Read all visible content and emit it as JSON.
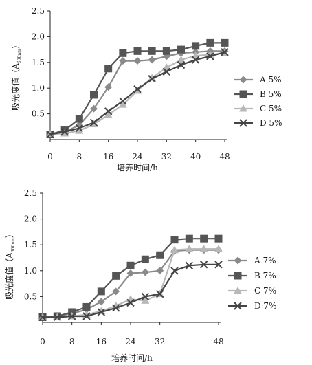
{
  "chart_data": [
    {
      "type": "line",
      "xlabel": "培养时间/h",
      "ylabel_main": "吸光度值（A",
      "ylabel_sub": "600nm",
      "ylabel_end": "）",
      "xlim": [
        0,
        48
      ],
      "ylim": [
        0,
        2.5
      ],
      "xticks": [
        "0",
        "8",
        "16",
        "24",
        "32",
        "40",
        "48"
      ],
      "yticks": [
        "0.5",
        "1.0",
        "1.5",
        "2.0",
        "2.5"
      ],
      "series": [
        {
          "name": "A  5%",
          "color": "#8a8a8a",
          "marker": "diamond",
          "x": [
            0,
            4,
            8,
            12,
            16,
            20,
            24,
            28,
            32,
            36,
            40,
            44,
            48
          ],
          "y": [
            0.1,
            0.15,
            0.28,
            0.6,
            1.02,
            1.53,
            1.53,
            1.55,
            1.62,
            1.68,
            1.7,
            1.72,
            1.72
          ]
        },
        {
          "name": "B  5%",
          "color": "#555555",
          "marker": "square",
          "x": [
            0,
            4,
            8,
            12,
            16,
            20,
            24,
            28,
            32,
            36,
            40,
            44,
            48
          ],
          "y": [
            0.1,
            0.18,
            0.4,
            0.87,
            1.38,
            1.68,
            1.72,
            1.72,
            1.72,
            1.75,
            1.82,
            1.88,
            1.88
          ]
        },
        {
          "name": "C  5%",
          "color": "#b8b8b8",
          "marker": "triangle",
          "x": [
            0,
            4,
            8,
            12,
            16,
            20,
            24,
            28,
            32,
            36,
            40,
            44,
            48
          ],
          "y": [
            0.1,
            0.12,
            0.17,
            0.3,
            0.48,
            0.68,
            0.95,
            1.2,
            1.4,
            1.55,
            1.63,
            1.65,
            1.68
          ]
        },
        {
          "name": "D  5%",
          "color": "#444444",
          "marker": "cross",
          "x": [
            0,
            4,
            8,
            12,
            16,
            20,
            24,
            28,
            32,
            36,
            40,
            44,
            48
          ],
          "y": [
            0.1,
            0.15,
            0.22,
            0.33,
            0.55,
            0.75,
            0.98,
            1.18,
            1.32,
            1.45,
            1.55,
            1.62,
            1.7
          ]
        }
      ]
    },
    {
      "type": "line",
      "xlabel": "培养时间/h",
      "ylabel_main": "吸光度值（A",
      "ylabel_sub": "600nm",
      "ylabel_end": "）",
      "xlim": [
        0,
        48
      ],
      "ylim": [
        0,
        2.5
      ],
      "xticks": [
        "0",
        "8",
        "16",
        "24",
        "32",
        "48"
      ],
      "xtick_values": [
        0,
        8,
        16,
        24,
        32,
        48
      ],
      "yticks": [
        "0.5",
        "1.0",
        "1.5",
        "2.0",
        "2.5"
      ],
      "series": [
        {
          "name": "A  7%",
          "color": "#8a8a8a",
          "marker": "diamond",
          "x": [
            0,
            4,
            8,
            12,
            16,
            20,
            24,
            28,
            32,
            36,
            40,
            44,
            48
          ],
          "y": [
            0.1,
            0.12,
            0.17,
            0.25,
            0.4,
            0.6,
            0.95,
            0.97,
            1.0,
            1.38,
            1.4,
            1.4,
            1.4
          ]
        },
        {
          "name": "B  7%",
          "color": "#555555",
          "marker": "square",
          "x": [
            0,
            4,
            8,
            12,
            16,
            20,
            24,
            28,
            32,
            36,
            40,
            44,
            48
          ],
          "y": [
            0.1,
            0.12,
            0.2,
            0.3,
            0.6,
            0.9,
            1.1,
            1.22,
            1.3,
            1.6,
            1.62,
            1.62,
            1.62
          ]
        },
        {
          "name": "C  7%",
          "color": "#b8b8b8",
          "marker": "triangle",
          "x": [
            0,
            4,
            8,
            12,
            16,
            20,
            24,
            28,
            32,
            36,
            40,
            44,
            48
          ],
          "y": [
            0.1,
            0.1,
            0.12,
            0.15,
            0.22,
            0.32,
            0.45,
            0.42,
            0.55,
            1.4,
            1.42,
            1.42,
            1.42
          ]
        },
        {
          "name": "D  7%",
          "color": "#444444",
          "marker": "cross",
          "x": [
            0,
            4,
            8,
            12,
            16,
            20,
            24,
            28,
            32,
            36,
            40,
            44,
            48
          ],
          "y": [
            0.1,
            0.1,
            0.12,
            0.12,
            0.2,
            0.28,
            0.38,
            0.5,
            0.55,
            1.0,
            1.1,
            1.12,
            1.12
          ]
        }
      ]
    }
  ]
}
